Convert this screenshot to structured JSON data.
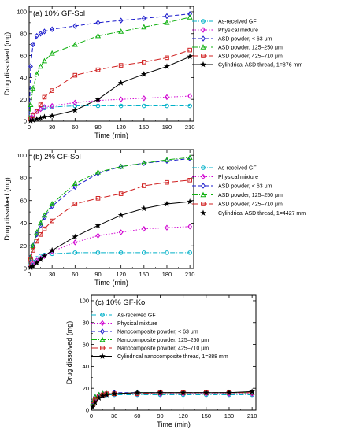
{
  "chart_data": [
    {
      "type": "line",
      "title": "(a) 10% GF-Sol",
      "xlabel": "Time (min)",
      "ylabel": "Drug dissolved (mg)",
      "xlim": [
        0,
        215
      ],
      "ylim": [
        0,
        105
      ],
      "xticks": [
        "0",
        "30",
        "60",
        "90",
        "120",
        "150",
        "180",
        "210"
      ],
      "yticks": [
        "0",
        "20",
        "40",
        "60",
        "80",
        "100"
      ],
      "legend_position": "right",
      "series": [
        {
          "name": "As-received GF",
          "color": "#00b0c8",
          "dash": "6 2 1 2",
          "marker": "circle",
          "x": [
            0,
            2,
            5,
            10,
            15,
            20,
            30,
            60,
            90,
            120,
            150,
            180,
            210
          ],
          "y": [
            0,
            3,
            6,
            9,
            11,
            12,
            13,
            14,
            14,
            14,
            14,
            14,
            14
          ]
        },
        {
          "name": "Physical mixture",
          "color": "#d000d0",
          "dash": "1.5 2",
          "marker": "diamond",
          "x": [
            0,
            2,
            5,
            10,
            15,
            20,
            30,
            60,
            90,
            120,
            150,
            180,
            210
          ],
          "y": [
            0,
            3,
            6,
            9,
            11,
            13,
            14,
            17,
            19,
            20,
            21,
            22,
            23
          ]
        },
        {
          "name": "ASD powder, < 63 μm",
          "color": "#1a1acc",
          "dash": "5 3",
          "marker": "diamond",
          "x": [
            0,
            2,
            5,
            10,
            15,
            20,
            30,
            60,
            90,
            120,
            150,
            180,
            210
          ],
          "y": [
            0,
            50,
            70,
            78,
            80,
            82,
            84,
            87,
            90,
            92,
            94,
            96,
            98
          ]
        },
        {
          "name": "ASD powder, 125–250 μm",
          "color": "#10b010",
          "dash": "7 2 1 2",
          "marker": "triangle",
          "x": [
            0,
            2,
            5,
            10,
            15,
            20,
            30,
            60,
            90,
            120,
            150,
            180,
            210
          ],
          "y": [
            0,
            15,
            30,
            43,
            50,
            55,
            62,
            70,
            78,
            82,
            86,
            90,
            95
          ]
        },
        {
          "name": "ASD powder, 425–710 μm",
          "color": "#d02020",
          "dash": "8 3",
          "marker": "square",
          "x": [
            0,
            2,
            5,
            10,
            15,
            20,
            30,
            60,
            90,
            120,
            150,
            180,
            210
          ],
          "y": [
            0,
            2,
            5,
            9,
            15,
            22,
            28,
            42,
            47,
            51,
            54,
            58,
            65
          ]
        },
        {
          "name": "Cylindrical ASD thread, 1=876 mm",
          "color": "#000000",
          "dash": "",
          "marker": "star",
          "x": [
            0,
            2,
            5,
            10,
            15,
            20,
            30,
            60,
            90,
            120,
            150,
            180,
            210
          ],
          "y": [
            0,
            0.5,
            1,
            2,
            3,
            4,
            5,
            10,
            20,
            35,
            43,
            50,
            59
          ]
        }
      ]
    },
    {
      "type": "line",
      "title": "(b) 2% GF-Sol",
      "xlabel": "Time (min)",
      "ylabel": "Drug dissolved (mg)",
      "xlim": [
        0,
        215
      ],
      "ylim": [
        0,
        105
      ],
      "xticks": [
        "0",
        "30",
        "60",
        "90",
        "120",
        "150",
        "180",
        "210"
      ],
      "yticks": [
        "0",
        "20",
        "40",
        "60",
        "80",
        "100"
      ],
      "legend_position": "right",
      "series": [
        {
          "name": "As-received GF",
          "color": "#00b0c8",
          "dash": "6 2 1 2",
          "marker": "circle",
          "x": [
            0,
            2,
            5,
            10,
            15,
            20,
            30,
            60,
            90,
            120,
            150,
            180,
            210
          ],
          "y": [
            0,
            3,
            6,
            9,
            11,
            12,
            13,
            14,
            14,
            14,
            14,
            14,
            14
          ]
        },
        {
          "name": "Physical mixture",
          "color": "#d000d0",
          "dash": "1.5 2",
          "marker": "diamond",
          "x": [
            0,
            2,
            5,
            10,
            15,
            20,
            30,
            60,
            90,
            120,
            150,
            180,
            210
          ],
          "y": [
            0,
            2,
            4,
            7,
            9,
            11,
            15,
            23,
            29,
            32,
            35,
            36,
            37
          ]
        },
        {
          "name": "ASD powder, < 63 μm",
          "color": "#1a1acc",
          "dash": "5 3",
          "marker": "diamond",
          "x": [
            0,
            2,
            5,
            10,
            15,
            20,
            30,
            60,
            90,
            120,
            150,
            180,
            210
          ],
          "y": [
            0,
            10,
            20,
            30,
            38,
            45,
            55,
            72,
            84,
            90,
            93,
            95,
            97
          ]
        },
        {
          "name": "ASD powder, 125–250 μm",
          "color": "#10b010",
          "dash": "7 2 1 2",
          "marker": "triangle",
          "x": [
            0,
            2,
            5,
            10,
            15,
            20,
            30,
            60,
            90,
            120,
            150,
            180,
            210
          ],
          "y": [
            0,
            10,
            20,
            32,
            40,
            47,
            57,
            75,
            85,
            90,
            93,
            96,
            98
          ]
        },
        {
          "name": "ASD powder, 425–710 μm",
          "color": "#d02020",
          "dash": "8 3",
          "marker": "square",
          "x": [
            0,
            2,
            5,
            10,
            15,
            20,
            30,
            60,
            90,
            120,
            150,
            180,
            210
          ],
          "y": [
            0,
            8,
            16,
            24,
            30,
            35,
            42,
            57,
            62,
            66,
            73,
            76,
            78
          ]
        },
        {
          "name": "Cylindrical ASD thread, 1=4427 mm",
          "color": "#000000",
          "dash": "",
          "marker": "star",
          "x": [
            0,
            2,
            5,
            10,
            15,
            20,
            30,
            60,
            90,
            120,
            150,
            180,
            210
          ],
          "y": [
            0,
            1,
            2,
            5,
            8,
            11,
            16,
            28,
            38,
            47,
            53,
            57,
            59
          ]
        }
      ]
    },
    {
      "type": "line",
      "title": "(c) 10% GF-Kol",
      "xlabel": "Time (min)",
      "ylabel": "Drug dissolved (mg)",
      "xlim": [
        0,
        215
      ],
      "ylim": [
        0,
        105
      ],
      "xticks": [
        "0",
        "30",
        "60",
        "90",
        "120",
        "150",
        "180",
        "210"
      ],
      "yticks": [
        "0",
        "20",
        "40",
        "60",
        "80",
        "100"
      ],
      "legend_position": "top-right",
      "series": [
        {
          "name": "As-received GF",
          "color": "#00b0c8",
          "dash": "6 2 1 2",
          "marker": "circle",
          "x": [
            0,
            2,
            5,
            10,
            15,
            20,
            30,
            60,
            90,
            120,
            150,
            180,
            210
          ],
          "y": [
            0,
            5,
            9,
            12,
            13,
            14,
            14,
            14,
            14,
            14,
            14,
            14,
            14
          ]
        },
        {
          "name": "Physical mixture",
          "color": "#d000d0",
          "dash": "1.5 2",
          "marker": "diamond",
          "x": [
            0,
            2,
            5,
            10,
            15,
            20,
            30,
            60,
            90,
            120,
            150,
            180,
            210
          ],
          "y": [
            0,
            6,
            10,
            13,
            14,
            15,
            15,
            15,
            15,
            15,
            15,
            15,
            15
          ]
        },
        {
          "name": "Nanocomposite powder, < 63 μm",
          "color": "#1a1acc",
          "dash": "5 3",
          "marker": "diamond",
          "x": [
            0,
            2,
            5,
            10,
            15,
            20,
            30,
            60,
            90,
            120,
            150,
            180,
            210
          ],
          "y": [
            0,
            7,
            12,
            14,
            15,
            15,
            16,
            16,
            16,
            16,
            16,
            16,
            16
          ]
        },
        {
          "name": "Nanocomposite powder, 125–250 μm",
          "color": "#10b010",
          "dash": "7 2 1 2",
          "marker": "triangle",
          "x": [
            0,
            2,
            5,
            10,
            15,
            20,
            30,
            60,
            90,
            120,
            150,
            180,
            210
          ],
          "y": [
            0,
            7,
            12,
            14,
            15,
            15,
            15,
            16,
            16,
            16,
            16,
            16,
            16
          ]
        },
        {
          "name": "Nanocomposite powder, 425–710 μm",
          "color": "#d02020",
          "dash": "8 3",
          "marker": "square",
          "x": [
            0,
            2,
            5,
            10,
            15,
            20,
            30,
            60,
            90,
            120,
            150,
            180,
            210
          ],
          "y": [
            0,
            5,
            10,
            13,
            14,
            15,
            15,
            15,
            16,
            16,
            16,
            16,
            16
          ]
        },
        {
          "name": "Cylindrical nanocomposite thread, 1=888 mm",
          "color": "#000000",
          "dash": "",
          "marker": "star",
          "x": [
            0,
            2,
            5,
            10,
            15,
            20,
            30,
            60,
            90,
            120,
            150,
            180,
            210
          ],
          "y": [
            0,
            3,
            7,
            11,
            13,
            14,
            15,
            16,
            16,
            16,
            16,
            16,
            17
          ]
        }
      ]
    }
  ]
}
